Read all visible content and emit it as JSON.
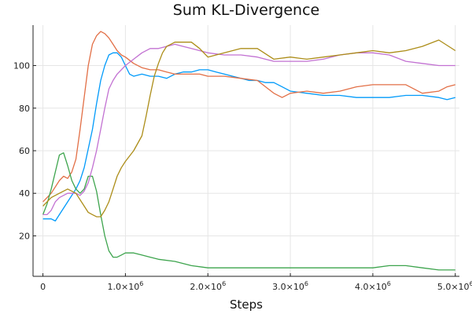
{
  "chart_data": {
    "type": "line",
    "title": "Sum KL-Divergence",
    "xlabel": "Steps",
    "ylabel": "",
    "xlim": [
      -120000,
      5050000
    ],
    "ylim": [
      1,
      119
    ],
    "grid": true,
    "legend": "none",
    "x_ticks": [
      {
        "value": 0,
        "label": "0"
      },
      {
        "value": 1000000,
        "label": "1.0×10",
        "exp": "6"
      },
      {
        "value": 2000000,
        "label": "2.0×10",
        "exp": "6"
      },
      {
        "value": 3000000,
        "label": "3.0×10",
        "exp": "6"
      },
      {
        "value": 4000000,
        "label": "4.0×10",
        "exp": "6"
      },
      {
        "value": 5000000,
        "label": "5.0×10",
        "exp": "6"
      }
    ],
    "y_ticks": [
      {
        "value": 20,
        "label": "20"
      },
      {
        "value": 40,
        "label": "40"
      },
      {
        "value": 60,
        "label": "60"
      },
      {
        "value": 80,
        "label": "80"
      },
      {
        "value": 100,
        "label": "100"
      }
    ],
    "series": [
      {
        "color": "#009AFA",
        "x": [
          0,
          100000,
          150000,
          200000,
          300000,
          400000,
          450000,
          500000,
          600000,
          650000,
          700000,
          750000,
          800000,
          850000,
          900000,
          950000,
          1000000,
          1050000,
          1100000,
          1200000,
          1300000,
          1400000,
          1500000,
          1600000,
          1700000,
          1800000,
          1900000,
          2000000,
          2100000,
          2200000,
          2300000,
          2400000,
          2500000,
          2600000,
          2700000,
          2800000,
          2900000,
          3000000,
          3200000,
          3400000,
          3600000,
          3800000,
          4000000,
          4200000,
          4400000,
          4600000,
          4800000,
          4900000,
          5000000
        ],
        "y": [
          28,
          28,
          27,
          30,
          36,
          42,
          46,
          52,
          70,
          82,
          93,
          100,
          105,
          106,
          106,
          104,
          100,
          96,
          95,
          96,
          95,
          95,
          94,
          96,
          97,
          97,
          98,
          98,
          97,
          96,
          95,
          94,
          93,
          93,
          92,
          92,
          90,
          88,
          87,
          86,
          86,
          85,
          85,
          85,
          86,
          86,
          85,
          84,
          85
        ]
      },
      {
        "color": "#E26F46",
        "x": [
          0,
          50000,
          100000,
          200000,
          250000,
          300000,
          350000,
          400000,
          450000,
          500000,
          550000,
          600000,
          650000,
          700000,
          750000,
          800000,
          850000,
          900000,
          950000,
          1000000,
          1100000,
          1200000,
          1300000,
          1400000,
          1500000,
          1600000,
          1700000,
          1800000,
          1900000,
          2000000,
          2200000,
          2400000,
          2600000,
          2700000,
          2800000,
          2900000,
          3000000,
          3200000,
          3400000,
          3600000,
          3800000,
          4000000,
          4200000,
          4400000,
          4600000,
          4800000,
          4900000,
          5000000
        ],
        "y": [
          36,
          38,
          40,
          46,
          48,
          47,
          50,
          56,
          70,
          85,
          100,
          110,
          114,
          116,
          115,
          113,
          110,
          107,
          105,
          104,
          101,
          99,
          98,
          98,
          97,
          96,
          96,
          96,
          96,
          95,
          95,
          94,
          93,
          90,
          87,
          85,
          87,
          88,
          87,
          88,
          90,
          91,
          91,
          91,
          87,
          88,
          90,
          91
        ]
      },
      {
        "color": "#3DA44D",
        "x": [
          0,
          50000,
          100000,
          150000,
          200000,
          250000,
          300000,
          350000,
          400000,
          450000,
          500000,
          550000,
          600000,
          650000,
          700000,
          750000,
          800000,
          850000,
          900000,
          950000,
          1000000,
          1100000,
          1200000,
          1300000,
          1400000,
          1600000,
          1800000,
          2000000,
          2200000,
          2400000,
          2600000,
          2800000,
          3000000,
          3200000,
          3400000,
          3600000,
          3800000,
          4000000,
          4200000,
          4400000,
          4600000,
          4800000,
          5000000
        ],
        "y": [
          30,
          35,
          42,
          50,
          58,
          59,
          53,
          46,
          42,
          40,
          42,
          48,
          48,
          41,
          30,
          20,
          13,
          10,
          10,
          11,
          12,
          12,
          11,
          10,
          9,
          8,
          6,
          5,
          5,
          5,
          5,
          5,
          5,
          5,
          5,
          5,
          5,
          5,
          6,
          6,
          5,
          4,
          4
        ]
      },
      {
        "color": "#C271D2",
        "x": [
          0,
          50000,
          100000,
          150000,
          200000,
          300000,
          400000,
          450000,
          500000,
          550000,
          600000,
          650000,
          700000,
          750000,
          800000,
          850000,
          900000,
          1000000,
          1100000,
          1200000,
          1300000,
          1400000,
          1500000,
          1600000,
          1700000,
          1800000,
          1900000,
          2000000,
          2200000,
          2400000,
          2600000,
          2800000,
          3000000,
          3200000,
          3400000,
          3600000,
          3800000,
          4000000,
          4200000,
          4400000,
          4600000,
          4800000,
          5000000
        ],
        "y": [
          30,
          30,
          32,
          36,
          38,
          40,
          40,
          39,
          41,
          45,
          52,
          60,
          70,
          80,
          89,
          93,
          96,
          100,
          103,
          106,
          108,
          108,
          109,
          110,
          109,
          108,
          107,
          106,
          105,
          105,
          104,
          102,
          102,
          102,
          103,
          105,
          106,
          106,
          105,
          102,
          101,
          100,
          100
        ]
      },
      {
        "color": "#AC8D18",
        "x": [
          0,
          100000,
          200000,
          300000,
          400000,
          500000,
          550000,
          600000,
          650000,
          700000,
          750000,
          800000,
          850000,
          900000,
          950000,
          1000000,
          1100000,
          1200000,
          1250000,
          1300000,
          1350000,
          1400000,
          1450000,
          1500000,
          1550000,
          1600000,
          1700000,
          1800000,
          1900000,
          2000000,
          2200000,
          2400000,
          2600000,
          2800000,
          3000000,
          3200000,
          3400000,
          3600000,
          3800000,
          4000000,
          4200000,
          4400000,
          4600000,
          4800000,
          5000000
        ],
        "y": [
          34,
          38,
          40,
          42,
          40,
          34,
          31,
          30,
          29,
          29,
          32,
          36,
          42,
          48,
          52,
          55,
          60,
          67,
          76,
          86,
          95,
          101,
          106,
          109,
          110,
          111,
          111,
          111,
          108,
          104,
          106,
          108,
          108,
          103,
          104,
          103,
          104,
          105,
          106,
          107,
          106,
          107,
          109,
          112,
          107
        ]
      }
    ]
  }
}
